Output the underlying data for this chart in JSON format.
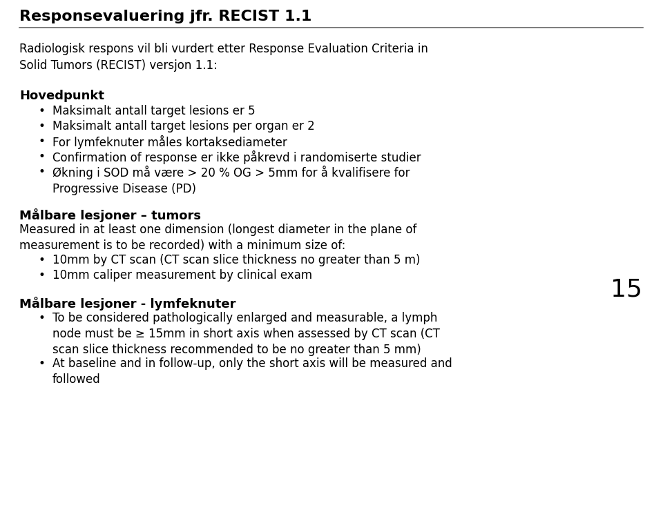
{
  "title": "Responsevaluering jfr. RECIST 1.1",
  "bg_color": "#ffffff",
  "title_color": "#000000",
  "title_fontsize": 16,
  "intro_text": "Radiologisk respons vil bli vurdert etter Response Evaluation Criteria in\nSolid Tumors (RECIST) versjon 1.1:",
  "section1_header": "Hovedpunkt",
  "section1_bullets": [
    "Maksimalt antall target lesions er 5",
    "Maksimalt antall target lesions per organ er 2",
    "For lymfeknuter måles kortaksediameter",
    "Confirmation of response er ikke påkrevd i randomiserte studier",
    "Økning i SOD må være > 20 % OG > 5mm for å kvalifisere for\nProgressive Disease (PD)"
  ],
  "section2_header": "Målbare lesjoner – tumors",
  "section2_body": "Measured in at least one dimension (longest diameter in the plane of\nmeasurement is to be recorded) with a minimum size of:",
  "section2_bullets": [
    "10mm by CT scan (CT scan slice thickness no greater than 5 m)",
    "10mm caliper measurement by clinical exam"
  ],
  "section3_header": "Målbare lesjoner - lymfeknuter",
  "section3_bullets": [
    "To be considered pathologically enlarged and measurable, a lymph\nnode must be ≥ 15mm in short axis when assessed by CT scan (CT\nscan slice thickness recommended to be no greater than 5 mm)",
    "At baseline and in follow-up, only the short axis will be measured and\nfollowed"
  ],
  "page_number": "15",
  "font_family": "DejaVu Sans",
  "body_fontsize": 12,
  "header_fontsize": 13,
  "bullet_char": "•"
}
